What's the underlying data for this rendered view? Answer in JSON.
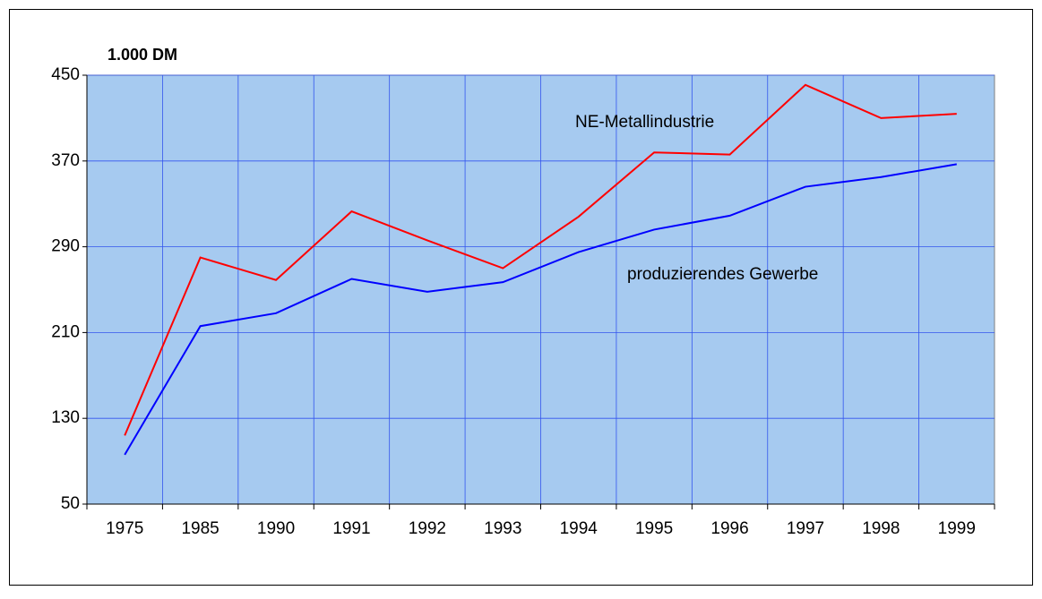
{
  "chart_data": {
    "type": "line",
    "ylabel": "1.000 DM",
    "categories": [
      "1975",
      "1985",
      "1990",
      "1991",
      "1992",
      "1993",
      "1994",
      "1995",
      "1996",
      "1997",
      "1998",
      "1999"
    ],
    "series": [
      {
        "name": "NE-Metallindustrie",
        "color": "#ff0000",
        "values": [
          114,
          280,
          259,
          323,
          296,
          270,
          318,
          378,
          376,
          441,
          410,
          414
        ]
      },
      {
        "name": "produzierendes Gewerbe",
        "color": "#0000ff",
        "values": [
          96,
          216,
          228,
          260,
          248,
          257,
          285,
          306,
          319,
          346,
          355,
          367
        ]
      }
    ],
    "ylim": [
      50,
      450
    ],
    "yticks": [
      50,
      130,
      210,
      290,
      370,
      450
    ],
    "grid": true,
    "background": "#a6caf0"
  }
}
